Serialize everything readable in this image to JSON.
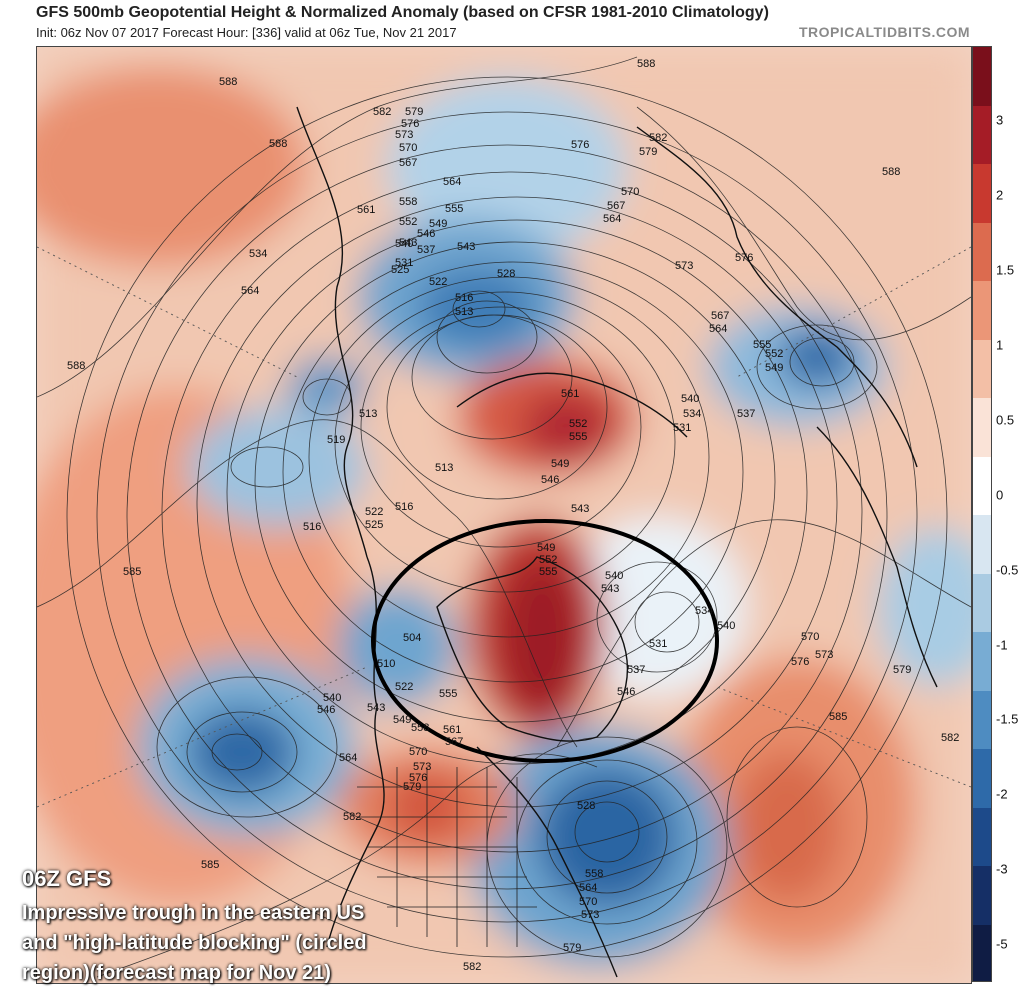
{
  "header": {
    "title": "GFS 500mb Geopotential Height & Normalized Anomaly (based on CFSR 1981-2010 Climatology)",
    "subtitle": "Init: 06z Nov 07 2017   Forecast Hour: [336]   valid at 06z Tue, Nov 21 2017",
    "source": "TROPICALTIDBITS.COM"
  },
  "colorbar": {
    "labels": [
      "3",
      "2",
      "1.5",
      "1",
      "0.5",
      "0",
      "-0.5",
      "-1",
      "-1.5",
      "-2",
      "-3",
      "-5"
    ],
    "colors": [
      "#7a0f1b",
      "#a51c26",
      "#c8392f",
      "#dc6b4f",
      "#eb9677",
      "#f3bfa6",
      "#fae3d7",
      "#ffffff",
      "#d8e6f1",
      "#aacbe2",
      "#78acd3",
      "#4e8cc1",
      "#2e6aa9",
      "#1d4a8a",
      "#152f66",
      "#0f1c44"
    ]
  },
  "contour_labels": [
    {
      "text": "588"
    },
    {
      "text": "582"
    },
    {
      "text": "579"
    },
    {
      "text": "576"
    },
    {
      "text": "573"
    },
    {
      "text": "570"
    },
    {
      "text": "567"
    },
    {
      "text": "564"
    },
    {
      "text": "561"
    },
    {
      "text": "558"
    },
    {
      "text": "555"
    },
    {
      "text": "552"
    },
    {
      "text": "549"
    },
    {
      "text": "546"
    },
    {
      "text": "543"
    },
    {
      "text": "540"
    },
    {
      "text": "537"
    },
    {
      "text": "534"
    },
    {
      "text": "531"
    },
    {
      "text": "528"
    },
    {
      "text": "525"
    },
    {
      "text": "522"
    },
    {
      "text": "519"
    },
    {
      "text": "516"
    },
    {
      "text": "513"
    },
    {
      "text": "510"
    },
    {
      "text": "504"
    },
    {
      "text": "585"
    }
  ],
  "annotation": {
    "tag": "06Z GFS",
    "line1": "Impressive trough in the eastern US",
    "line2": "and \"high-latitude blocking\" (circled",
    "line3": "region)(forecast map for Nov 21)"
  }
}
